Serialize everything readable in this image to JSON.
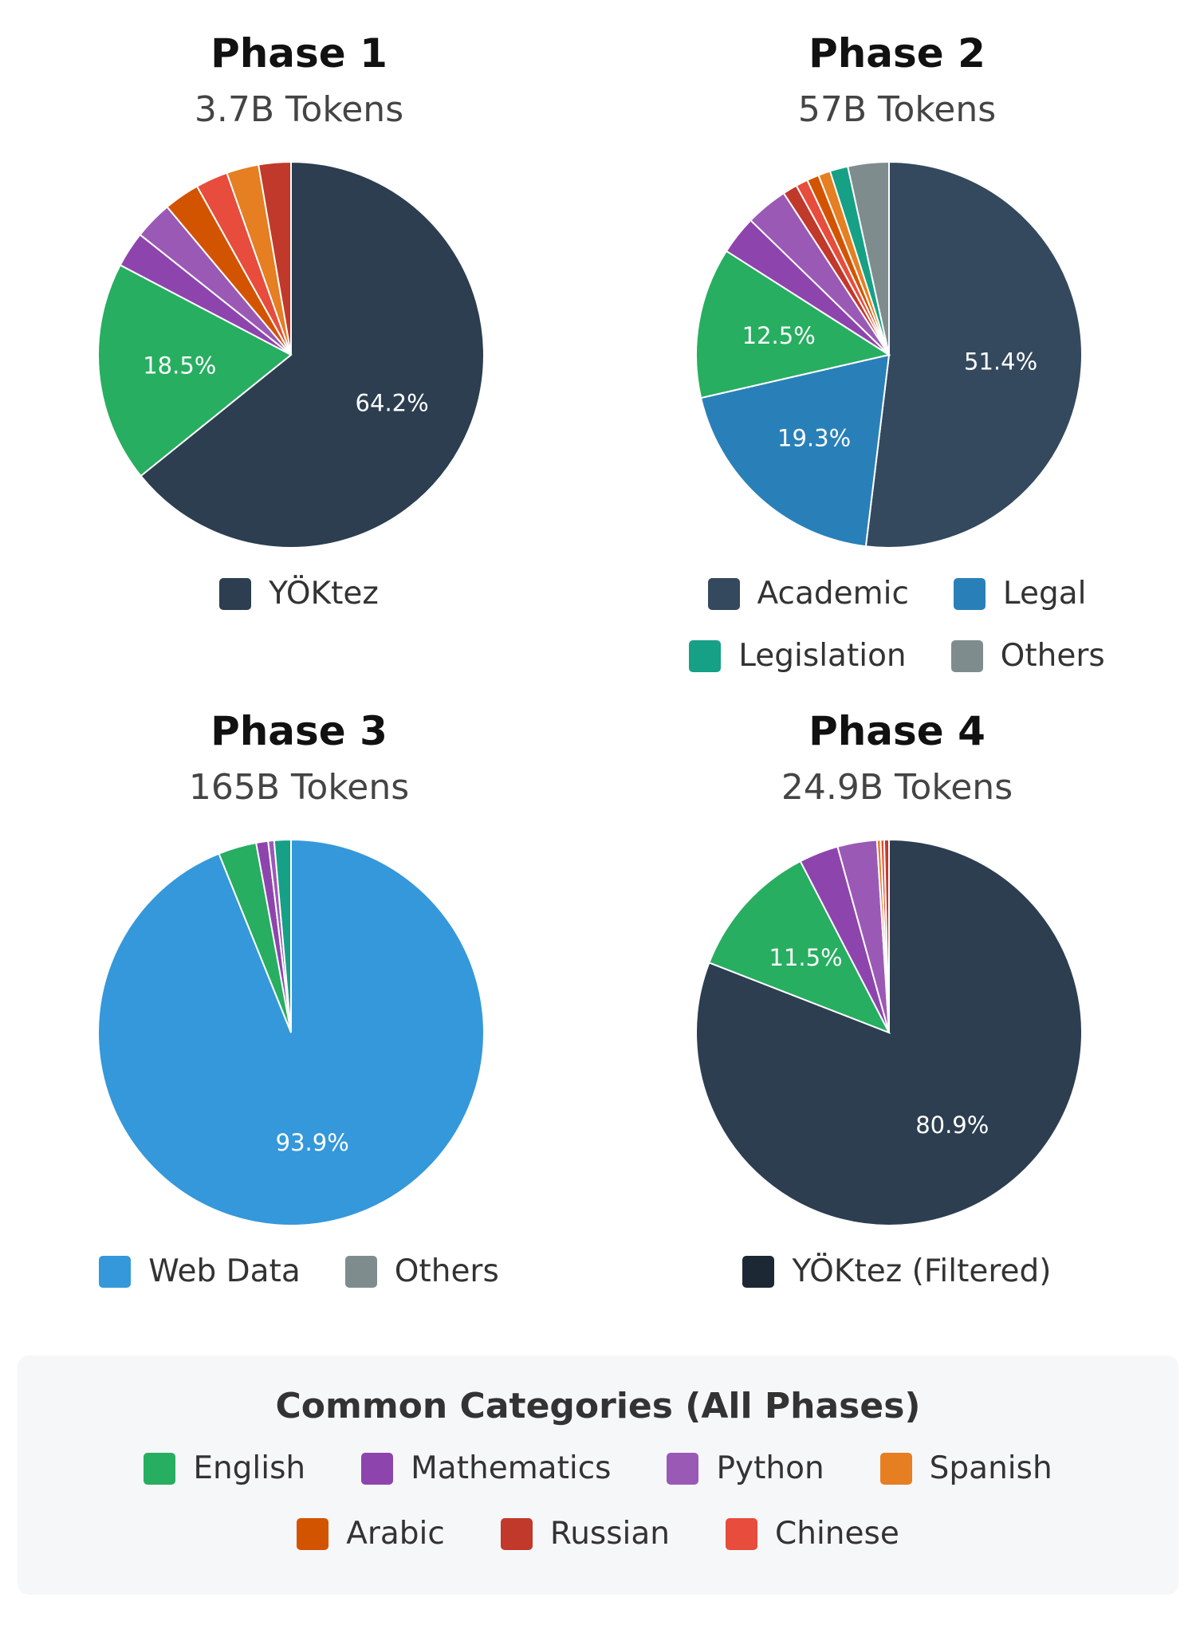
{
  "chart_data": [
    {
      "type": "pie",
      "title": "Phase 1",
      "subtitle": "3.7B Tokens",
      "slices": [
        {
          "label": "YÖKtez",
          "value": 64.2,
          "color": "#2c3e50",
          "show_label": true
        },
        {
          "label": "English",
          "value": 18.5,
          "color": "#27ae60",
          "show_label": true
        },
        {
          "label": "Mathematics",
          "value": 3.0,
          "color": "#8e44ad",
          "show_label": false
        },
        {
          "label": "Python",
          "value": 3.2,
          "color": "#9b59b6",
          "show_label": false
        },
        {
          "label": "Arabic",
          "value": 3.0,
          "color": "#d35400",
          "show_label": false
        },
        {
          "label": "Chinese",
          "value": 2.7,
          "color": "#e74c3c",
          "show_label": false
        },
        {
          "label": "Spanish",
          "value": 2.7,
          "color": "#e67e22",
          "show_label": false
        },
        {
          "label": "Russian",
          "value": 2.7,
          "color": "#c0392b",
          "show_label": false
        }
      ],
      "legend": [
        {
          "label": "YÖKtez",
          "color": "#2c3e50"
        }
      ]
    },
    {
      "type": "pie",
      "title": "Phase 2",
      "subtitle": "57B Tokens",
      "slices": [
        {
          "label": "Academic",
          "value": 51.4,
          "color": "#34495e",
          "show_label": true
        },
        {
          "label": "Legal",
          "value": 19.3,
          "color": "#2980b9",
          "show_label": true
        },
        {
          "label": "English",
          "value": 12.5,
          "color": "#27ae60",
          "show_label": true
        },
        {
          "label": "Mathematics",
          "value": 3.2,
          "color": "#8e44ad",
          "show_label": false
        },
        {
          "label": "Python",
          "value": 3.5,
          "color": "#9b59b6",
          "show_label": false
        },
        {
          "label": "Russian",
          "value": 1.2,
          "color": "#c0392b",
          "show_label": false
        },
        {
          "label": "Chinese",
          "value": 1.0,
          "color": "#e74c3c",
          "show_label": false
        },
        {
          "label": "Arabic",
          "value": 1.0,
          "color": "#d35400",
          "show_label": false
        },
        {
          "label": "Spanish",
          "value": 1.0,
          "color": "#e67e22",
          "show_label": false
        },
        {
          "label": "Legislation",
          "value": 1.5,
          "color": "#16a085",
          "show_label": false
        },
        {
          "label": "Others",
          "value": 3.4,
          "color": "#7f8c8d",
          "show_label": false
        }
      ],
      "legend": [
        {
          "label": "Academic",
          "color": "#34495e"
        },
        {
          "label": "Legal",
          "color": "#2980b9"
        },
        {
          "label": "Legislation",
          "color": "#16a085"
        },
        {
          "label": "Others",
          "color": "#7f8c8d"
        }
      ]
    },
    {
      "type": "pie",
      "title": "Phase 3",
      "subtitle": "165B Tokens",
      "slices": [
        {
          "label": "Web Data",
          "value": 93.9,
          "color": "#3498db",
          "show_label": true
        },
        {
          "label": "English",
          "value": 3.2,
          "color": "#27ae60",
          "show_label": false
        },
        {
          "label": "Mathematics",
          "value": 1.0,
          "color": "#8e44ad",
          "show_label": false
        },
        {
          "label": "Python",
          "value": 0.5,
          "color": "#9b59b6",
          "show_label": false
        },
        {
          "label": "Others",
          "value": 1.4,
          "color": "#16a085",
          "show_label": false
        }
      ],
      "legend": [
        {
          "label": "Web Data",
          "color": "#3498db"
        },
        {
          "label": "Others",
          "color": "#7f8c8d"
        }
      ]
    },
    {
      "type": "pie",
      "title": "Phase 4",
      "subtitle": "24.9B Tokens",
      "slices": [
        {
          "label": "YÖKtez (Filtered)",
          "value": 80.9,
          "color": "#2c3e50",
          "show_label": true
        },
        {
          "label": "English",
          "value": 11.5,
          "color": "#27ae60",
          "show_label": true
        },
        {
          "label": "Mathematics",
          "value": 3.3,
          "color": "#8e44ad",
          "show_label": false
        },
        {
          "label": "Python",
          "value": 3.3,
          "color": "#9b59b6",
          "show_label": false
        },
        {
          "label": "Spanish",
          "value": 0.3,
          "color": "#e67e22",
          "show_label": false
        },
        {
          "label": "Chinese",
          "value": 0.3,
          "color": "#e74c3c",
          "show_label": false
        },
        {
          "label": "Russian",
          "value": 0.4,
          "color": "#c0392b",
          "show_label": false
        }
      ],
      "legend": [
        {
          "label": "YÖKtez (Filtered)",
          "color": "#1c2833"
        }
      ]
    }
  ],
  "common": {
    "title": "Common Categories (All Phases)",
    "items": [
      {
        "label": "English",
        "color": "#27ae60"
      },
      {
        "label": "Mathematics",
        "color": "#8e44ad"
      },
      {
        "label": "Python",
        "color": "#9b59b6"
      },
      {
        "label": "Spanish",
        "color": "#e67e22"
      },
      {
        "label": "Arabic",
        "color": "#d35400"
      },
      {
        "label": "Russian",
        "color": "#c0392b"
      },
      {
        "label": "Chinese",
        "color": "#e74c3c"
      }
    ]
  }
}
